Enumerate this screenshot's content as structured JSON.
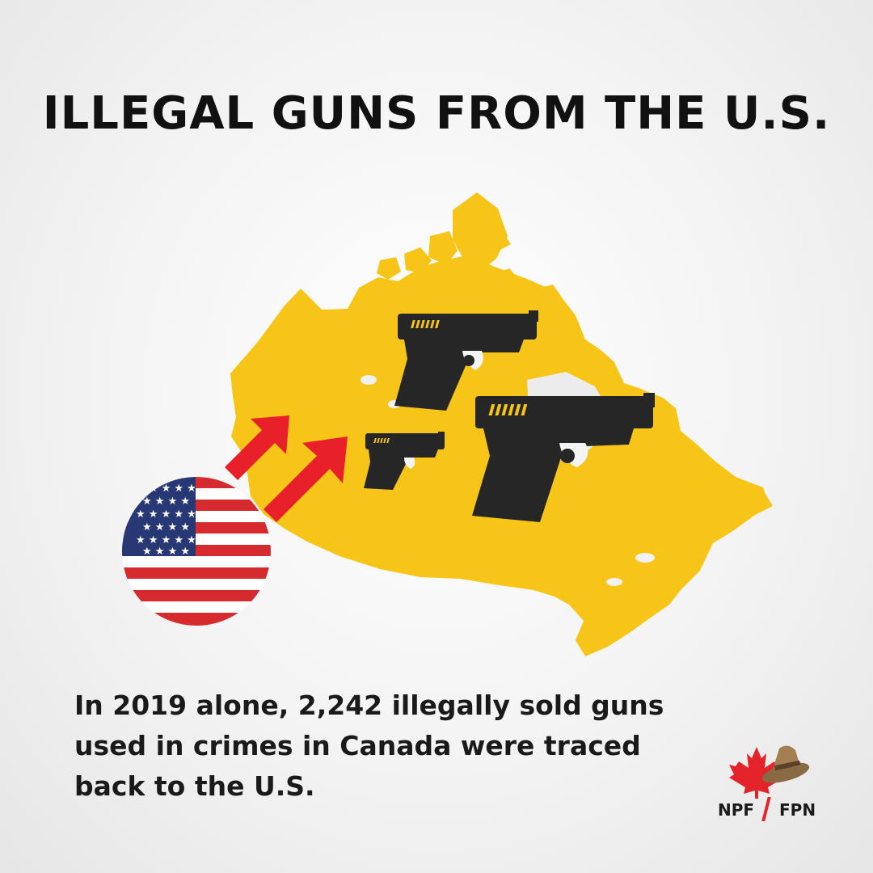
{
  "title": "ILLEGAL GUNS FROM THE U.S.",
  "caption": {
    "line1": "In 2019 alone, 2,242 illegally sold guns",
    "line2": "used in crimes in Canada were traced",
    "line3": "back to the U.S."
  },
  "logo": {
    "left_text": "NPF",
    "right_text": "FPN"
  },
  "colors": {
    "map": "#f7c517",
    "gun": "#262626",
    "gun_accent": "#f7c517",
    "arrow": "#e8202a",
    "flag_red": "#d52b2e",
    "flag_blue": "#283874",
    "maple_red": "#e4232b"
  },
  "icons": [
    "canada-map",
    "handgun-icon",
    "up-right-arrow-icon",
    "us-flag-icon",
    "maple-leaf-icon",
    "mountie-hat-icon"
  ]
}
